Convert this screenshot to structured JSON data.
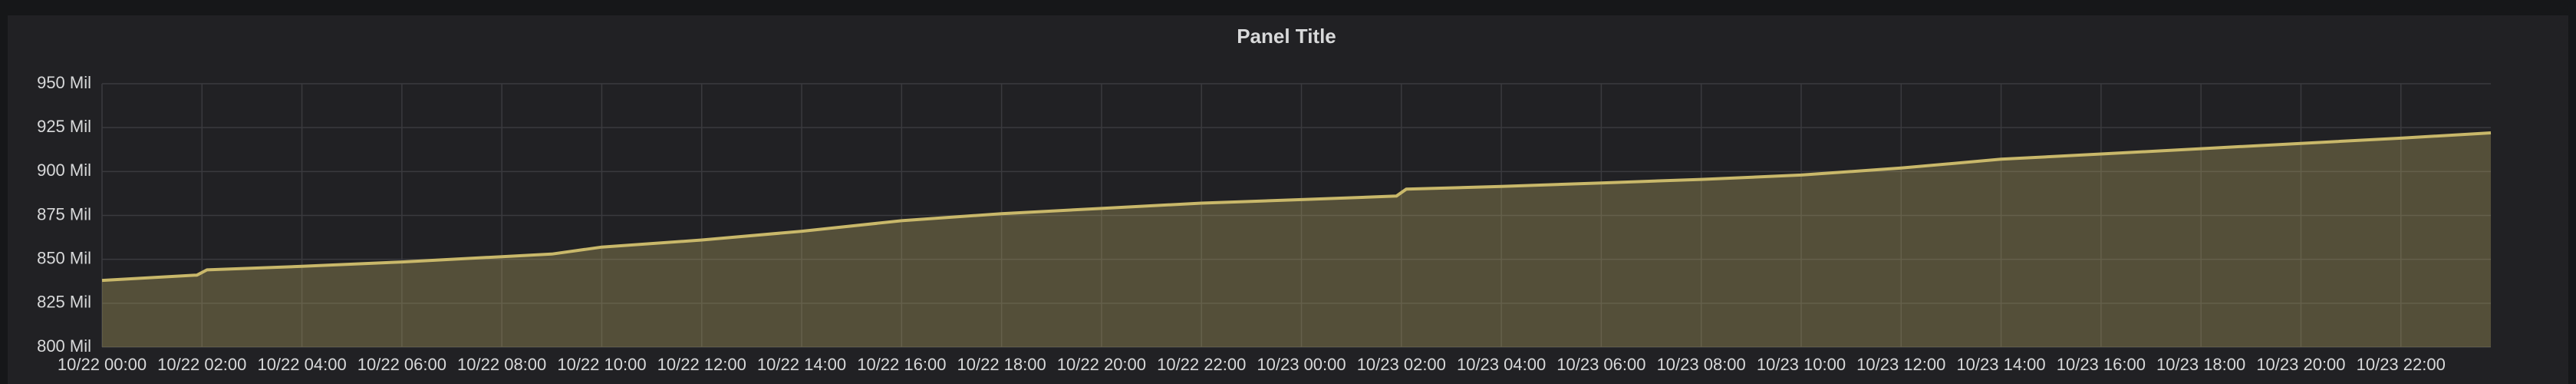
{
  "chart_data": {
    "type": "line",
    "title": "Panel Title",
    "x": [
      "10/22 00:00",
      "10/22 01:54",
      "10/22 02:06",
      "10/22 04:00",
      "10/22 06:00",
      "10/22 08:00",
      "10/22 09:00",
      "10/22 10:00",
      "10/22 12:00",
      "10/22 14:00",
      "10/22 16:00",
      "10/22 18:00",
      "10/22 20:00",
      "10/22 22:00",
      "10/23 00:00",
      "10/23 01:54",
      "10/23 02:06",
      "10/23 04:00",
      "10/23 06:00",
      "10/23 08:00",
      "10/23 10:00",
      "10/23 12:00",
      "10/23 14:00",
      "10/23 16:00",
      "10/23 18:00",
      "10/23 20:00",
      "10/23 22:00",
      "10/23 23:48"
    ],
    "series": [
      {
        "color": "#c9b86a",
        "values": [
          838,
          841,
          844,
          846,
          848.5,
          851.5,
          853,
          857,
          861,
          866,
          872,
          876,
          879,
          882,
          884,
          886,
          890,
          891.5,
          893.5,
          895.5,
          898,
          902,
          907,
          910,
          913,
          916,
          919,
          922
        ]
      }
    ],
    "xlim": [
      "10/22 00:00",
      "10/23 23:48"
    ],
    "xticks": [
      "10/22 00:00",
      "10/22 02:00",
      "10/22 04:00",
      "10/22 06:00",
      "10/22 08:00",
      "10/22 10:00",
      "10/22 12:00",
      "10/22 14:00",
      "10/22 16:00",
      "10/22 18:00",
      "10/22 20:00",
      "10/22 22:00",
      "10/23 00:00",
      "10/23 02:00",
      "10/23 04:00",
      "10/23 06:00",
      "10/23 08:00",
      "10/23 10:00",
      "10/23 12:00",
      "10/23 14:00",
      "10/23 16:00",
      "10/23 18:00",
      "10/23 20:00",
      "10/23 22:00"
    ],
    "ylim": [
      800,
      950
    ],
    "yticks": [
      {
        "value": 800,
        "label": "800 Mil"
      },
      {
        "value": 825,
        "label": "825 Mil"
      },
      {
        "value": 850,
        "label": "850 Mil"
      },
      {
        "value": 875,
        "label": "875 Mil"
      },
      {
        "value": 900,
        "label": "900 Mil"
      },
      {
        "value": 925,
        "label": "925 Mil"
      },
      {
        "value": 950,
        "label": "950 Mil"
      }
    ],
    "grid": true
  }
}
